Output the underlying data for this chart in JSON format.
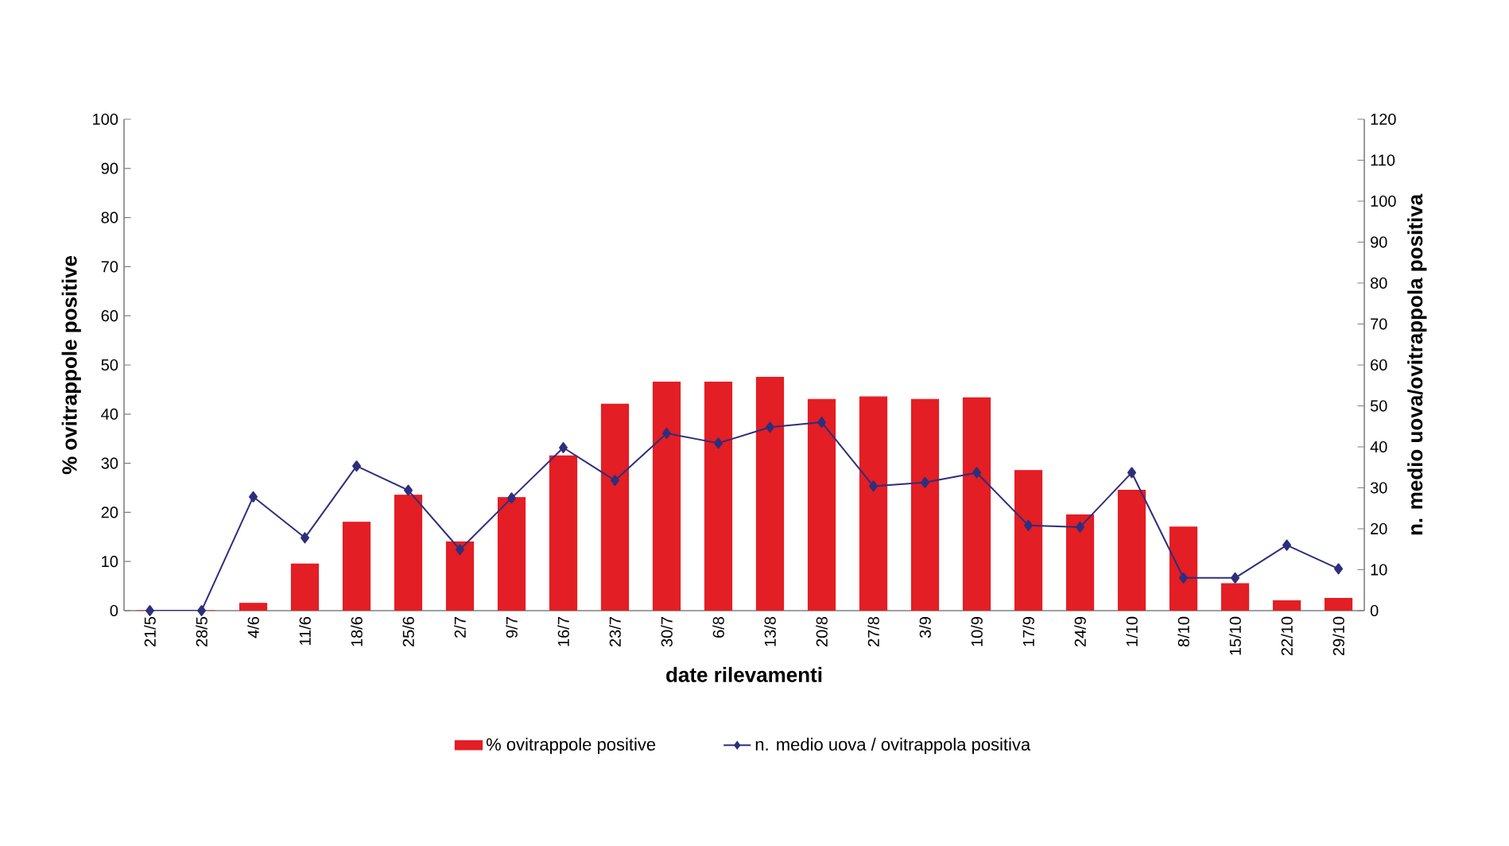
{
  "chart_data": {
    "type": "bar",
    "xlabel": "date rilevamenti",
    "ylabel": "% ovitrappole positive",
    "y2label": "n. medio uova/ovitrappola positiva",
    "categories": [
      "21/5",
      "28/5",
      "4/6",
      "11/6",
      "18/6",
      "25/6",
      "2/7",
      "9/7",
      "16/7",
      "23/7",
      "30/7",
      "6/8",
      "13/8",
      "20/8",
      "27/8",
      "3/9",
      "10/9",
      "17/9",
      "24/9",
      "1/10",
      "8/10",
      "15/10",
      "22/10",
      "29/10"
    ],
    "series": [
      {
        "name": "% ovitrappole positive",
        "color": "#e31e24",
        "values": [
          0,
          0,
          1.5,
          9.5,
          18,
          23.5,
          14,
          23,
          31.5,
          42,
          46.5,
          46.5,
          47.5,
          43,
          43.5,
          43,
          43.3,
          28.5,
          19.5,
          24.5,
          17,
          5.5,
          2,
          2.5
        ]
      },
      {
        "name": "n. medio uova / ovitrappola positiva",
        "type": "line",
        "axis": "y2",
        "color": "#2e2f7c",
        "marker": "diamond",
        "line_style": "solid",
        "values": [
          0,
          0,
          27.8,
          17.8,
          35.3,
          29.4,
          14.9,
          27.5,
          39.8,
          31.8,
          43.3,
          40.9,
          44.8,
          46,
          30.4,
          31.3,
          33.7,
          20.8,
          20.4,
          33.7,
          8,
          8,
          16,
          10.2
        ]
      }
    ],
    "ylim": [
      0,
      100
    ],
    "yticks": [
      0,
      10,
      20,
      30,
      40,
      50,
      60,
      70,
      80,
      90,
      100
    ],
    "y2lim": [
      0,
      120
    ],
    "y2ticks": [
      0,
      10,
      20,
      30,
      40,
      50,
      60,
      70,
      80,
      90,
      100,
      110,
      120
    ],
    "legend": "bottom",
    "grid": false
  }
}
